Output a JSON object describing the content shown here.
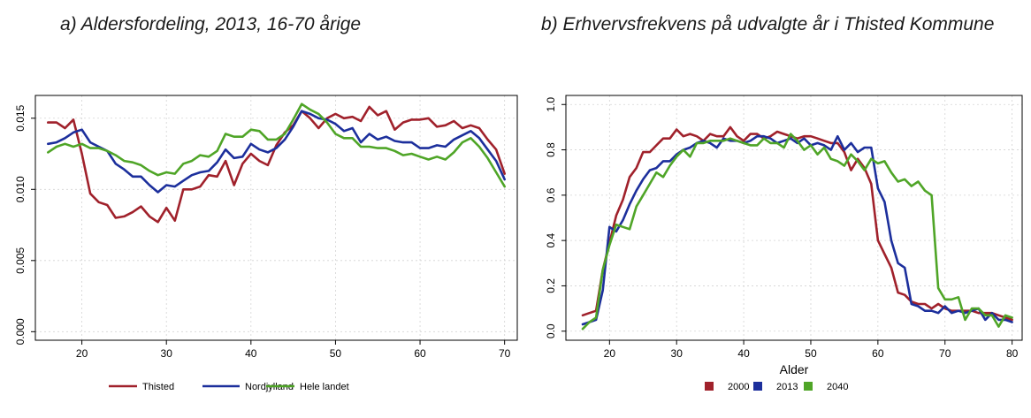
{
  "panel_a": {
    "title": "a) Aldersfordeling, 2013, 16-70 årige"
  },
  "panel_b": {
    "title": "b) Erhvervsfrekvens på udvalgte år i Thisted Kommune"
  },
  "chart_data": [
    {
      "type": "line",
      "title": "a) Aldersfordeling, 2013, 16-70 årige",
      "xlabel": "",
      "ylabel": "",
      "xlim": [
        14.5,
        71.5
      ],
      "ylim": [
        -0.0006,
        0.0166
      ],
      "xticks": [
        20,
        30,
        40,
        50,
        60,
        70
      ],
      "yticks": [
        0.0,
        0.005,
        0.01,
        0.015
      ],
      "ytick_labels": [
        "0.000",
        "0.005",
        "0.010",
        "0.015"
      ],
      "grid": true,
      "legend": "bottom",
      "x": [
        16,
        17,
        18,
        19,
        20,
        21,
        22,
        23,
        24,
        25,
        26,
        27,
        28,
        29,
        30,
        31,
        32,
        33,
        34,
        35,
        36,
        37,
        38,
        39,
        40,
        41,
        42,
        43,
        44,
        45,
        46,
        47,
        48,
        49,
        50,
        51,
        52,
        53,
        54,
        55,
        56,
        57,
        58,
        59,
        60,
        61,
        62,
        63,
        64,
        65,
        66,
        67,
        68,
        69,
        70
      ],
      "series": [
        {
          "name": "Thisted",
          "color": "#a0212b",
          "values": [
            0.0147,
            0.0147,
            0.0143,
            0.0149,
            0.0125,
            0.0097,
            0.0091,
            0.0089,
            0.008,
            0.0081,
            0.0084,
            0.0088,
            0.0081,
            0.0077,
            0.0087,
            0.0078,
            0.01,
            0.01,
            0.0102,
            0.011,
            0.0109,
            0.012,
            0.0103,
            0.0118,
            0.0125,
            0.012,
            0.0117,
            0.0131,
            0.014,
            0.0145,
            0.0155,
            0.015,
            0.0143,
            0.015,
            0.0153,
            0.015,
            0.0151,
            0.0148,
            0.0158,
            0.0152,
            0.0155,
            0.0142,
            0.0147,
            0.0149,
            0.0149,
            0.015,
            0.0144,
            0.0145,
            0.0148,
            0.0143,
            0.0145,
            0.0143,
            0.0135,
            0.0128,
            0.0111
          ]
        },
        {
          "name": "Nordjylland",
          "color": "#1c2f9c",
          "values": [
            0.0132,
            0.0133,
            0.0136,
            0.014,
            0.0142,
            0.0133,
            0.013,
            0.0127,
            0.0118,
            0.0114,
            0.0109,
            0.0109,
            0.0103,
            0.0098,
            0.0103,
            0.0102,
            0.0106,
            0.011,
            0.0112,
            0.0113,
            0.0119,
            0.0128,
            0.0122,
            0.0123,
            0.0132,
            0.0128,
            0.0126,
            0.0129,
            0.0135,
            0.0144,
            0.0155,
            0.0153,
            0.015,
            0.0149,
            0.0146,
            0.0141,
            0.0143,
            0.0133,
            0.0139,
            0.0135,
            0.0137,
            0.0134,
            0.0133,
            0.0133,
            0.0129,
            0.0129,
            0.0131,
            0.013,
            0.0135,
            0.0138,
            0.0141,
            0.0136,
            0.0128,
            0.012,
            0.0107
          ]
        },
        {
          "name": "Hele landet",
          "color": "#4fa527",
          "values": [
            0.0126,
            0.013,
            0.0132,
            0.013,
            0.0132,
            0.0129,
            0.0129,
            0.0127,
            0.0124,
            0.012,
            0.0119,
            0.0117,
            0.0113,
            0.011,
            0.0112,
            0.0111,
            0.0118,
            0.012,
            0.0124,
            0.0123,
            0.0127,
            0.0139,
            0.0137,
            0.0137,
            0.0142,
            0.0141,
            0.0135,
            0.0135,
            0.0139,
            0.0149,
            0.016,
            0.0156,
            0.0153,
            0.0147,
            0.0139,
            0.0136,
            0.0136,
            0.013,
            0.013,
            0.0129,
            0.0129,
            0.0127,
            0.0124,
            0.0125,
            0.0123,
            0.0121,
            0.0123,
            0.0121,
            0.0126,
            0.0133,
            0.0136,
            0.013,
            0.0122,
            0.0112,
            0.0102
          ]
        }
      ]
    },
    {
      "type": "line",
      "title": "b) Erhvervsfrekvens på udvalgte år i Thisted Kommune",
      "xlabel": "Alder",
      "ylabel": "",
      "xlim": [
        13.5,
        81.5
      ],
      "ylim": [
        -0.04,
        1.04
      ],
      "xticks": [
        20,
        30,
        40,
        50,
        60,
        70,
        80
      ],
      "yticks": [
        0.0,
        0.2,
        0.4,
        0.6,
        0.8,
        1.0
      ],
      "ytick_labels": [
        "0.0",
        "0.2",
        "0.4",
        "0.6",
        "0.8",
        "1.0"
      ],
      "grid": true,
      "legend": "bottom",
      "x": [
        16,
        17,
        18,
        19,
        20,
        21,
        22,
        23,
        24,
        25,
        26,
        27,
        28,
        29,
        30,
        31,
        32,
        33,
        34,
        35,
        36,
        37,
        38,
        39,
        40,
        41,
        42,
        43,
        44,
        45,
        46,
        47,
        48,
        49,
        50,
        51,
        52,
        53,
        54,
        55,
        56,
        57,
        58,
        59,
        60,
        61,
        62,
        63,
        64,
        65,
        66,
        67,
        68,
        69,
        70,
        71,
        72,
        73,
        74,
        75,
        76,
        77,
        78,
        79,
        80
      ],
      "series": [
        {
          "name": "2000",
          "color": "#a0212b",
          "values": [
            0.07,
            0.08,
            0.09,
            0.27,
            0.39,
            0.51,
            0.58,
            0.68,
            0.72,
            0.79,
            0.79,
            0.82,
            0.85,
            0.85,
            0.89,
            0.86,
            0.87,
            0.86,
            0.84,
            0.87,
            0.86,
            0.86,
            0.9,
            0.86,
            0.84,
            0.87,
            0.87,
            0.85,
            0.86,
            0.88,
            0.87,
            0.86,
            0.85,
            0.86,
            0.86,
            0.85,
            0.84,
            0.83,
            0.83,
            0.79,
            0.71,
            0.76,
            0.72,
            0.65,
            0.4,
            0.34,
            0.28,
            0.17,
            0.16,
            0.13,
            0.12,
            0.12,
            0.1,
            0.12,
            0.1,
            0.09,
            0.09,
            0.09,
            0.09,
            0.08,
            0.08,
            0.08,
            0.07,
            0.06,
            0.05
          ]
        },
        {
          "name": "2013",
          "color": "#1c2f9c",
          "values": [
            0.03,
            0.04,
            0.05,
            0.18,
            0.46,
            0.44,
            0.49,
            0.56,
            0.62,
            0.67,
            0.71,
            0.72,
            0.75,
            0.75,
            0.78,
            0.8,
            0.81,
            0.83,
            0.84,
            0.83,
            0.81,
            0.85,
            0.84,
            0.84,
            0.83,
            0.84,
            0.86,
            0.86,
            0.85,
            0.83,
            0.84,
            0.85,
            0.83,
            0.85,
            0.82,
            0.83,
            0.82,
            0.8,
            0.86,
            0.8,
            0.83,
            0.79,
            0.81,
            0.81,
            0.63,
            0.57,
            0.4,
            0.3,
            0.28,
            0.12,
            0.11,
            0.09,
            0.09,
            0.08,
            0.11,
            0.08,
            0.09,
            0.08,
            0.09,
            0.1,
            0.05,
            0.08,
            0.05,
            0.05,
            0.04
          ]
        },
        {
          "name": "2040",
          "color": "#4fa527",
          "values": [
            0.01,
            0.04,
            0.06,
            0.27,
            0.38,
            0.47,
            0.46,
            0.45,
            0.55,
            0.6,
            0.65,
            0.7,
            0.68,
            0.73,
            0.77,
            0.8,
            0.77,
            0.83,
            0.83,
            0.84,
            0.84,
            0.84,
            0.85,
            0.84,
            0.83,
            0.82,
            0.82,
            0.85,
            0.83,
            0.83,
            0.81,
            0.87,
            0.84,
            0.8,
            0.82,
            0.78,
            0.81,
            0.76,
            0.75,
            0.73,
            0.78,
            0.75,
            0.71,
            0.76,
            0.74,
            0.75,
            0.7,
            0.66,
            0.67,
            0.64,
            0.66,
            0.62,
            0.6,
            0.19,
            0.14,
            0.14,
            0.15,
            0.05,
            0.1,
            0.1,
            0.07,
            0.07,
            0.02,
            0.07,
            0.06
          ]
        }
      ]
    }
  ]
}
